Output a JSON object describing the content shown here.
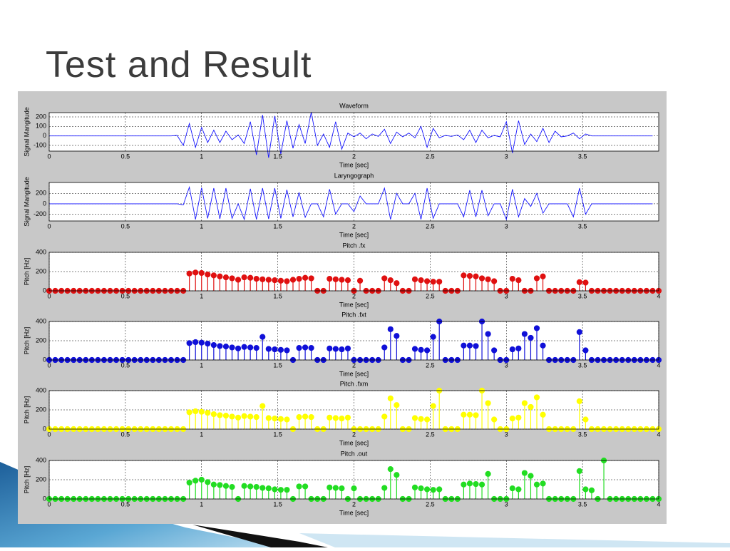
{
  "title": "Test and Result",
  "chart_data": [
    {
      "type": "line",
      "title": "Waveform",
      "xlabel": "Time [sec]",
      "ylabel": "Signal Mangitude",
      "color": "#1414ff",
      "xlim": [
        0,
        4
      ],
      "xticks": [
        0,
        0.5,
        1,
        1.5,
        2,
        2.5,
        3,
        3.5
      ],
      "ylim": [
        -160,
        245
      ],
      "yticks": [
        -100,
        0,
        100,
        200
      ],
      "grid": true,
      "x": [
        0,
        0.04,
        0.08,
        0.12,
        0.16,
        0.2,
        0.24,
        0.28,
        0.32,
        0.36,
        0.4,
        0.44,
        0.48,
        0.52,
        0.56,
        0.6,
        0.64,
        0.68,
        0.72,
        0.76,
        0.8,
        0.84,
        0.88,
        0.92,
        0.96,
        1,
        1.04,
        1.08,
        1.12,
        1.16,
        1.2,
        1.24,
        1.28,
        1.32,
        1.36,
        1.4,
        1.44,
        1.48,
        1.52,
        1.56,
        1.6,
        1.64,
        1.68,
        1.72,
        1.76,
        1.8,
        1.84,
        1.88,
        1.92,
        1.96,
        2,
        2.04,
        2.08,
        2.12,
        2.16,
        2.2,
        2.24,
        2.28,
        2.32,
        2.36,
        2.4,
        2.44,
        2.48,
        2.52,
        2.56,
        2.6,
        2.64,
        2.68,
        2.72,
        2.76,
        2.8,
        2.84,
        2.88,
        2.92,
        2.96,
        3,
        3.04,
        3.08,
        3.12,
        3.16,
        3.2,
        3.24,
        3.28,
        3.32,
        3.36,
        3.4,
        3.44,
        3.48,
        3.52,
        3.56,
        3.6,
        3.64,
        3.68,
        3.72,
        3.76,
        3.8,
        3.84,
        3.88,
        3.92,
        3.96
      ],
      "values": [
        0,
        0,
        0,
        0,
        0,
        0,
        0,
        0,
        0,
        0,
        0,
        0,
        0,
        0,
        0,
        0,
        0,
        0,
        0,
        0,
        0,
        5,
        -100,
        130,
        -120,
        90,
        -70,
        60,
        -70,
        50,
        -40,
        10,
        -80,
        150,
        -200,
        220,
        -230,
        210,
        -190,
        160,
        -130,
        120,
        -80,
        250,
        -100,
        20,
        -120,
        150,
        -140,
        30,
        -10,
        30,
        -30,
        20,
        -5,
        70,
        -80,
        40,
        -10,
        30,
        -20,
        100,
        -120,
        80,
        -20,
        5,
        -5,
        10,
        -40,
        60,
        -70,
        60,
        -20,
        5,
        -10,
        150,
        -180,
        160,
        -90,
        20,
        -60,
        80,
        -70,
        50,
        -10,
        0,
        30,
        -30,
        20,
        0,
        0,
        0,
        0,
        0,
        0,
        0,
        0,
        0,
        0,
        0
      ]
    },
    {
      "type": "line",
      "title": "Laryngograph",
      "xlabel": "Time [sec]",
      "ylabel": "Signal Mangitude",
      "color": "#1414ff",
      "xlim": [
        0,
        4
      ],
      "xticks": [
        0,
        0.5,
        1,
        1.5,
        2,
        2.5,
        3,
        3.5
      ],
      "ylim": [
        -330,
        410
      ],
      "yticks": [
        -200,
        0,
        200
      ],
      "grid": true,
      "x": [
        0,
        0.04,
        0.08,
        0.12,
        0.16,
        0.2,
        0.24,
        0.28,
        0.32,
        0.36,
        0.4,
        0.44,
        0.48,
        0.52,
        0.56,
        0.6,
        0.64,
        0.68,
        0.72,
        0.76,
        0.8,
        0.84,
        0.88,
        0.92,
        0.96,
        1,
        1.04,
        1.08,
        1.12,
        1.16,
        1.2,
        1.24,
        1.28,
        1.32,
        1.36,
        1.4,
        1.44,
        1.48,
        1.52,
        1.56,
        1.6,
        1.64,
        1.68,
        1.72,
        1.76,
        1.8,
        1.84,
        1.88,
        1.92,
        1.96,
        2,
        2.04,
        2.08,
        2.12,
        2.16,
        2.2,
        2.24,
        2.28,
        2.32,
        2.36,
        2.4,
        2.44,
        2.48,
        2.52,
        2.56,
        2.6,
        2.64,
        2.68,
        2.72,
        2.76,
        2.8,
        2.84,
        2.88,
        2.92,
        2.96,
        3,
        3.04,
        3.08,
        3.12,
        3.16,
        3.2,
        3.24,
        3.28,
        3.32,
        3.36,
        3.4,
        3.44,
        3.48,
        3.52,
        3.56,
        3.6,
        3.64,
        3.68,
        3.72,
        3.76,
        3.8,
        3.84,
        3.88,
        3.92,
        3.96
      ],
      "values": [
        0,
        0,
        0,
        0,
        0,
        0,
        0,
        0,
        0,
        0,
        0,
        0,
        0,
        0,
        0,
        0,
        0,
        0,
        0,
        0,
        0,
        0,
        -20,
        320,
        -300,
        310,
        -280,
        300,
        -290,
        300,
        -280,
        0,
        -300,
        290,
        -300,
        300,
        -290,
        300,
        -280,
        270,
        -250,
        220,
        -260,
        0,
        0,
        -250,
        280,
        -200,
        0,
        0,
        -150,
        150,
        0,
        0,
        0,
        300,
        -300,
        200,
        0,
        0,
        200,
        -300,
        300,
        -280,
        0,
        0,
        0,
        0,
        -250,
        260,
        -250,
        260,
        -230,
        0,
        0,
        -300,
        280,
        -250,
        100,
        -50,
        200,
        -180,
        0,
        0,
        0,
        0,
        -250,
        300,
        -200,
        0,
        0,
        0,
        0,
        0,
        0,
        0,
        0,
        0,
        0,
        0
      ]
    },
    {
      "type": "stem",
      "title": "Pitch .fx",
      "xlabel": "Time [sec]",
      "ylabel": "Pitch [Hz]",
      "color": "#e01010",
      "xlim": [
        0,
        4
      ],
      "xticks": [
        0,
        0.5,
        1,
        1.5,
        2,
        2.5,
        3,
        3.5,
        4
      ],
      "ylim": [
        0,
        400
      ],
      "yticks": [
        0,
        200,
        400
      ],
      "grid": true,
      "x": [
        0,
        0.04,
        0.08,
        0.12,
        0.16,
        0.2,
        0.24,
        0.28,
        0.32,
        0.36,
        0.4,
        0.44,
        0.48,
        0.52,
        0.56,
        0.6,
        0.64,
        0.68,
        0.72,
        0.76,
        0.8,
        0.84,
        0.88,
        0.92,
        0.96,
        1,
        1.04,
        1.08,
        1.12,
        1.16,
        1.2,
        1.24,
        1.28,
        1.32,
        1.36,
        1.4,
        1.44,
        1.48,
        1.52,
        1.56,
        1.6,
        1.64,
        1.68,
        1.72,
        1.76,
        1.8,
        1.84,
        1.88,
        1.92,
        1.96,
        2,
        2.04,
        2.08,
        2.12,
        2.16,
        2.2,
        2.24,
        2.28,
        2.32,
        2.36,
        2.4,
        2.44,
        2.48,
        2.52,
        2.56,
        2.6,
        2.64,
        2.68,
        2.72,
        2.76,
        2.8,
        2.84,
        2.88,
        2.92,
        2.96,
        3,
        3.04,
        3.08,
        3.12,
        3.16,
        3.2,
        3.24,
        3.28,
        3.32,
        3.36,
        3.4,
        3.44,
        3.48,
        3.52,
        3.56,
        3.6,
        3.64,
        3.68,
        3.72,
        3.76,
        3.8,
        3.84,
        3.88,
        3.92,
        3.96,
        4
      ],
      "values": [
        0,
        0,
        0,
        0,
        0,
        0,
        0,
        0,
        0,
        0,
        0,
        0,
        0,
        0,
        0,
        0,
        0,
        0,
        0,
        0,
        0,
        0,
        0,
        180,
        190,
        185,
        170,
        160,
        150,
        140,
        130,
        115,
        140,
        135,
        125,
        120,
        115,
        110,
        105,
        100,
        115,
        125,
        135,
        130,
        0,
        0,
        125,
        120,
        115,
        110,
        0,
        105,
        0,
        0,
        0,
        130,
        110,
        80,
        0,
        0,
        120,
        110,
        100,
        95,
        95,
        0,
        0,
        0,
        160,
        155,
        150,
        130,
        120,
        100,
        0,
        0,
        125,
        110,
        0,
        0,
        130,
        150,
        0,
        0,
        0,
        0,
        0,
        90,
        85,
        0,
        0,
        0,
        0,
        0,
        0,
        0,
        0,
        0,
        0,
        0,
        0
      ]
    },
    {
      "type": "stem",
      "title": "Pitch .fxt",
      "xlabel": "Time [sec]",
      "ylabel": "Pitch [Hz]",
      "color": "#1010d8",
      "xlim": [
        0,
        4
      ],
      "xticks": [
        0,
        0.5,
        1,
        1.5,
        2,
        2.5,
        3,
        3.5,
        4
      ],
      "ylim": [
        0,
        400
      ],
      "yticks": [
        0,
        200,
        400
      ],
      "grid": true,
      "x": [
        0,
        0.04,
        0.08,
        0.12,
        0.16,
        0.2,
        0.24,
        0.28,
        0.32,
        0.36,
        0.4,
        0.44,
        0.48,
        0.52,
        0.56,
        0.6,
        0.64,
        0.68,
        0.72,
        0.76,
        0.8,
        0.84,
        0.88,
        0.92,
        0.96,
        1,
        1.04,
        1.08,
        1.12,
        1.16,
        1.2,
        1.24,
        1.28,
        1.32,
        1.36,
        1.4,
        1.44,
        1.48,
        1.52,
        1.56,
        1.6,
        1.64,
        1.68,
        1.72,
        1.76,
        1.8,
        1.84,
        1.88,
        1.92,
        1.96,
        2,
        2.04,
        2.08,
        2.12,
        2.16,
        2.2,
        2.24,
        2.28,
        2.32,
        2.36,
        2.4,
        2.44,
        2.48,
        2.52,
        2.56,
        2.6,
        2.64,
        2.68,
        2.72,
        2.76,
        2.8,
        2.84,
        2.88,
        2.92,
        2.96,
        3,
        3.04,
        3.08,
        3.12,
        3.16,
        3.2,
        3.24,
        3.28,
        3.32,
        3.36,
        3.4,
        3.44,
        3.48,
        3.52,
        3.56,
        3.6,
        3.64,
        3.68,
        3.72,
        3.76,
        3.8,
        3.84,
        3.88,
        3.92,
        3.96,
        4
      ],
      "values": [
        0,
        0,
        0,
        0,
        0,
        0,
        0,
        0,
        0,
        0,
        0,
        0,
        0,
        0,
        0,
        0,
        0,
        0,
        0,
        0,
        0,
        0,
        0,
        175,
        185,
        180,
        170,
        155,
        145,
        140,
        130,
        120,
        135,
        130,
        125,
        240,
        115,
        110,
        105,
        100,
        0,
        125,
        130,
        125,
        0,
        0,
        120,
        115,
        110,
        120,
        0,
        0,
        0,
        0,
        0,
        130,
        320,
        250,
        0,
        0,
        115,
        105,
        100,
        240,
        400,
        0,
        0,
        0,
        150,
        150,
        145,
        400,
        270,
        100,
        0,
        0,
        110,
        120,
        270,
        230,
        330,
        150,
        0,
        0,
        0,
        0,
        0,
        290,
        100,
        0,
        0,
        0,
        0,
        0,
        0,
        0,
        0,
        0,
        0,
        0,
        0
      ]
    },
    {
      "type": "stem",
      "title": "Pitch .fxm",
      "xlabel": "Time [sec]",
      "ylabel": "Pitch [Hz]",
      "color": "#ffff00",
      "xlim": [
        0,
        4
      ],
      "xticks": [
        0,
        0.5,
        1,
        1.5,
        2,
        2.5,
        3,
        3.5,
        4
      ],
      "ylim": [
        0,
        400
      ],
      "yticks": [
        0,
        200,
        400
      ],
      "grid": true,
      "x": [
        0,
        0.04,
        0.08,
        0.12,
        0.16,
        0.2,
        0.24,
        0.28,
        0.32,
        0.36,
        0.4,
        0.44,
        0.48,
        0.52,
        0.56,
        0.6,
        0.64,
        0.68,
        0.72,
        0.76,
        0.8,
        0.84,
        0.88,
        0.92,
        0.96,
        1,
        1.04,
        1.08,
        1.12,
        1.16,
        1.2,
        1.24,
        1.28,
        1.32,
        1.36,
        1.4,
        1.44,
        1.48,
        1.52,
        1.56,
        1.6,
        1.64,
        1.68,
        1.72,
        1.76,
        1.8,
        1.84,
        1.88,
        1.92,
        1.96,
        2,
        2.04,
        2.08,
        2.12,
        2.16,
        2.2,
        2.24,
        2.28,
        2.32,
        2.36,
        2.4,
        2.44,
        2.48,
        2.52,
        2.56,
        2.6,
        2.64,
        2.68,
        2.72,
        2.76,
        2.8,
        2.84,
        2.88,
        2.92,
        2.96,
        3,
        3.04,
        3.08,
        3.12,
        3.16,
        3.2,
        3.24,
        3.28,
        3.32,
        3.36,
        3.4,
        3.44,
        3.48,
        3.52,
        3.56,
        3.6,
        3.64,
        3.68,
        3.72,
        3.76,
        3.8,
        3.84,
        3.88,
        3.92,
        3.96,
        4
      ],
      "values": [
        0,
        0,
        0,
        0,
        0,
        0,
        0,
        0,
        0,
        0,
        0,
        0,
        0,
        0,
        0,
        0,
        0,
        0,
        0,
        0,
        0,
        0,
        0,
        175,
        185,
        180,
        170,
        155,
        145,
        140,
        130,
        120,
        135,
        130,
        125,
        240,
        115,
        110,
        105,
        100,
        0,
        125,
        130,
        125,
        0,
        0,
        120,
        115,
        110,
        120,
        0,
        0,
        0,
        0,
        0,
        130,
        320,
        250,
        0,
        0,
        115,
        105,
        100,
        240,
        400,
        0,
        0,
        0,
        150,
        150,
        145,
        400,
        270,
        100,
        0,
        0,
        110,
        120,
        270,
        230,
        330,
        150,
        0,
        0,
        0,
        0,
        0,
        290,
        100,
        0,
        0,
        0,
        0,
        0,
        0,
        0,
        0,
        0,
        0,
        0,
        0
      ]
    },
    {
      "type": "stem",
      "title": "Pitch .out",
      "xlabel": "Time [sec]",
      "ylabel": "Pitch [Hz]",
      "color": "#22dd22",
      "xlim": [
        0,
        4
      ],
      "xticks": [
        0,
        0.5,
        1,
        1.5,
        2,
        2.5,
        3,
        3.5,
        4
      ],
      "ylim": [
        0,
        400
      ],
      "yticks": [
        0,
        200,
        400
      ],
      "grid": true,
      "x": [
        0,
        0.04,
        0.08,
        0.12,
        0.16,
        0.2,
        0.24,
        0.28,
        0.32,
        0.36,
        0.4,
        0.44,
        0.48,
        0.52,
        0.56,
        0.6,
        0.64,
        0.68,
        0.72,
        0.76,
        0.8,
        0.84,
        0.88,
        0.92,
        0.96,
        1,
        1.04,
        1.08,
        1.12,
        1.16,
        1.2,
        1.24,
        1.28,
        1.32,
        1.36,
        1.4,
        1.44,
        1.48,
        1.52,
        1.56,
        1.6,
        1.64,
        1.68,
        1.72,
        1.76,
        1.8,
        1.84,
        1.88,
        1.92,
        1.96,
        2,
        2.04,
        2.08,
        2.12,
        2.16,
        2.2,
        2.24,
        2.28,
        2.32,
        2.36,
        2.4,
        2.44,
        2.48,
        2.52,
        2.56,
        2.6,
        2.64,
        2.68,
        2.72,
        2.76,
        2.8,
        2.84,
        2.88,
        2.92,
        2.96,
        3,
        3.04,
        3.08,
        3.12,
        3.16,
        3.2,
        3.24,
        3.28,
        3.32,
        3.36,
        3.4,
        3.44,
        3.48,
        3.52,
        3.56,
        3.6,
        3.64,
        3.68,
        3.72,
        3.76,
        3.8,
        3.84,
        3.88,
        3.92,
        3.96,
        4
      ],
      "values": [
        0,
        0,
        0,
        0,
        0,
        0,
        0,
        0,
        0,
        0,
        0,
        0,
        0,
        0,
        0,
        0,
        0,
        0,
        0,
        0,
        0,
        0,
        0,
        170,
        190,
        200,
        175,
        150,
        145,
        135,
        125,
        0,
        135,
        130,
        125,
        115,
        110,
        100,
        95,
        95,
        0,
        130,
        130,
        0,
        0,
        0,
        120,
        115,
        110,
        0,
        110,
        0,
        0,
        0,
        0,
        115,
        310,
        250,
        0,
        0,
        120,
        110,
        100,
        95,
        100,
        0,
        0,
        0,
        150,
        160,
        155,
        150,
        260,
        0,
        0,
        0,
        110,
        100,
        270,
        240,
        150,
        160,
        0,
        0,
        0,
        0,
        0,
        290,
        100,
        90,
        0,
        400,
        0,
        0,
        0,
        0,
        0,
        0,
        0,
        0,
        0
      ]
    }
  ]
}
